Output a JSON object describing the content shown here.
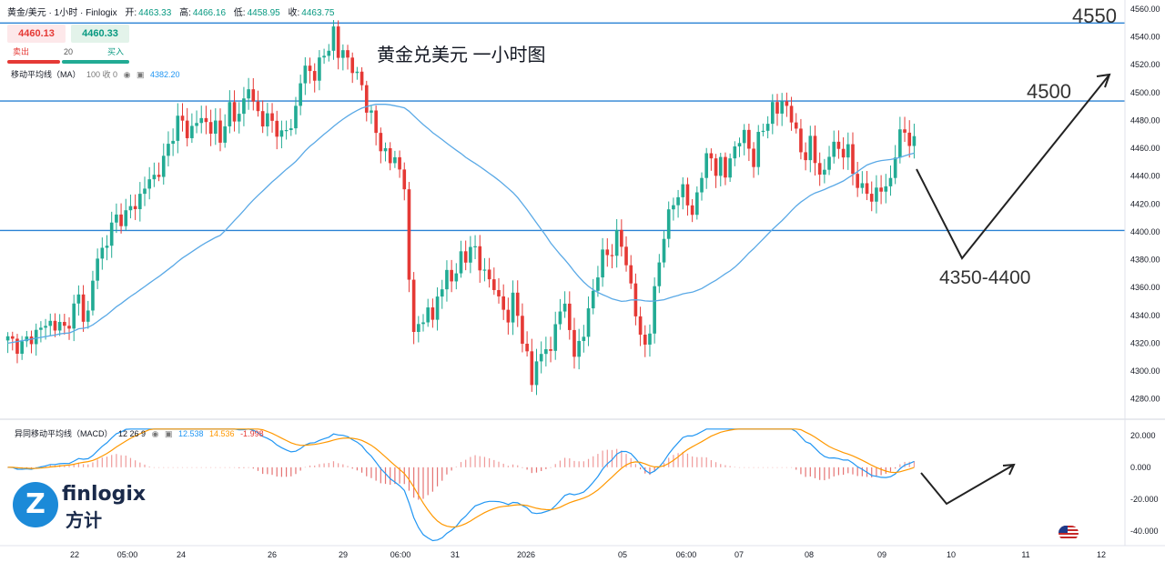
{
  "header": {
    "symbol": "黄金/美元 · 1小时 · Finlogix",
    "open_label": "开:",
    "open": "4463.33",
    "high_label": "高:",
    "high": "4466.16",
    "low_label": "低:",
    "low": "4458.95",
    "close_label": "收:",
    "close": "4463.75"
  },
  "trade": {
    "sell_price": "4460.13",
    "buy_price": "4460.33",
    "sell_label": "卖出",
    "buy_label": "买入",
    "quantity": "20"
  },
  "indicators": {
    "ma_label": "移动平均线（MA）",
    "ma_settings": "100 收 0",
    "ma_value": "4382.20",
    "macd_label": "异同移动平均线（MACD）",
    "macd_settings": "12 26 9",
    "macd_value": "12.538",
    "signal_value": "14.536",
    "hist_value": "-1.998"
  },
  "annotations": {
    "title": "黄金兑美元 一小时图",
    "level_4550": "4550",
    "level_4500": "4500",
    "level_zone": "4350-4400"
  },
  "logo": {
    "mark": "Z",
    "text": "finlogix",
    "chinese": "方计"
  },
  "colors": {
    "up": "#22ab94",
    "down": "#e53935",
    "ma": "#5aa9e6",
    "macd": "#2196f3",
    "signal": "#ff9800",
    "hline": "#2a82d4"
  },
  "chart_data": [
    {
      "type": "candlestick",
      "title": "",
      "y_ticks": [
        "4560.00",
        "4540.00",
        "4520.00",
        "4500.00",
        "4480.00",
        "4460.00",
        "4440.00",
        "4420.00",
        "4400.00",
        "4380.00",
        "4360.00",
        "4340.00",
        "4320.00",
        "4300.00",
        "4280.00"
      ],
      "x_ticks": [
        "22",
        "05:00",
        "24",
        "26",
        "29",
        "06:00",
        "31",
        "2026",
        "05",
        "06:00",
        "07",
        "08",
        "09",
        "10",
        "11",
        "12"
      ],
      "ylim": [
        4270,
        4560
      ],
      "horizontal_levels": [
        4550,
        4494,
        4401
      ],
      "price_path": [
        [
          0,
          4322
        ],
        [
          3,
          4318
        ],
        [
          6,
          4328
        ],
        [
          9,
          4335
        ],
        [
          12,
          4330
        ],
        [
          14,
          4345
        ],
        [
          15,
          4352
        ],
        [
          16,
          4340
        ],
        [
          17,
          4342
        ],
        [
          18,
          4365
        ],
        [
          19,
          4380
        ],
        [
          21,
          4395
        ],
        [
          23,
          4410
        ],
        [
          25,
          4412
        ],
        [
          27,
          4420
        ],
        [
          29,
          4432
        ],
        [
          31,
          4440
        ],
        [
          33,
          4450
        ],
        [
          35,
          4472
        ],
        [
          36,
          4480
        ],
        [
          37,
          4478
        ],
        [
          38,
          4470
        ],
        [
          40,
          4480
        ],
        [
          42,
          4478
        ],
        [
          44,
          4475
        ],
        [
          45,
          4462
        ],
        [
          46,
          4482
        ],
        [
          47,
          4490
        ],
        [
          48,
          4478
        ],
        [
          50,
          4495
        ],
        [
          51,
          4505
        ],
        [
          52,
          4490
        ],
        [
          54,
          4482
        ],
        [
          56,
          4478
        ],
        [
          58,
          4470
        ],
        [
          60,
          4475
        ],
        [
          61,
          4490
        ],
        [
          62,
          4510
        ],
        [
          63,
          4515
        ],
        [
          65,
          4515
        ],
        [
          67,
          4525
        ],
        [
          68,
          4535
        ],
        [
          69,
          4545
        ],
        [
          70,
          4525
        ],
        [
          71,
          4530
        ],
        [
          72,
          4525
        ],
        [
          73,
          4518
        ],
        [
          74,
          4510
        ],
        [
          75,
          4505
        ],
        [
          76,
          4492
        ],
        [
          77,
          4482
        ],
        [
          78,
          4470
        ],
        [
          79,
          4462
        ],
        [
          80,
          4458
        ],
        [
          81,
          4450
        ],
        [
          82,
          4452
        ],
        [
          83,
          4445
        ],
        [
          84,
          4435
        ],
        [
          85,
          4360
        ],
        [
          86,
          4328
        ],
        [
          87,
          4340
        ],
        [
          88,
          4330
        ],
        [
          89,
          4345
        ],
        [
          90,
          4340
        ],
        [
          91,
          4352
        ],
        [
          92,
          4360
        ],
        [
          93,
          4370
        ],
        [
          94,
          4365
        ],
        [
          95,
          4375
        ],
        [
          96,
          4380
        ],
        [
          97,
          4378
        ],
        [
          98,
          4395
        ],
        [
          99,
          4385
        ],
        [
          100,
          4372
        ],
        [
          101,
          4375
        ],
        [
          102,
          4365
        ],
        [
          103,
          4360
        ],
        [
          104,
          4350
        ],
        [
          105,
          4345
        ],
        [
          106,
          4340
        ],
        [
          107,
          4350
        ],
        [
          108,
          4340
        ],
        [
          109,
          4325
        ],
        [
          110,
          4310
        ],
        [
          111,
          4290
        ],
        [
          112,
          4308
        ],
        [
          113,
          4312
        ],
        [
          114,
          4318
        ],
        [
          115,
          4310
        ],
        [
          116,
          4335
        ],
        [
          117,
          4348
        ],
        [
          118,
          4342
        ],
        [
          119,
          4330
        ],
        [
          120,
          4315
        ],
        [
          121,
          4318
        ],
        [
          122,
          4325
        ],
        [
          123,
          4345
        ],
        [
          124,
          4358
        ],
        [
          125,
          4370
        ],
        [
          126,
          4382
        ],
        [
          127,
          4385
        ],
        [
          128,
          4388
        ],
        [
          129,
          4395
        ],
        [
          130,
          4390
        ],
        [
          131,
          4380
        ],
        [
          132,
          4360
        ],
        [
          133,
          4340
        ],
        [
          134,
          4325
        ],
        [
          135,
          4320
        ],
        [
          136,
          4330
        ],
        [
          137,
          4355
        ],
        [
          138,
          4380
        ],
        [
          139,
          4400
        ],
        [
          140,
          4410
        ],
        [
          141,
          4420
        ],
        [
          142,
          4428
        ],
        [
          143,
          4432
        ],
        [
          144,
          4420
        ],
        [
          145,
          4410
        ],
        [
          146,
          4430
        ],
        [
          147,
          4442
        ],
        [
          148,
          4450
        ],
        [
          149,
          4455
        ],
        [
          150,
          4445
        ],
        [
          151,
          4448
        ],
        [
          152,
          4440
        ],
        [
          153,
          4455
        ],
        [
          154,
          4460
        ],
        [
          155,
          4465
        ],
        [
          156,
          4470
        ],
        [
          157,
          4462
        ],
        [
          158,
          4450
        ],
        [
          159,
          4465
        ],
        [
          160,
          4475
        ],
        [
          161,
          4482
        ],
        [
          162,
          4488
        ],
        [
          163,
          4486
        ],
        [
          164,
          4495
        ],
        [
          165,
          4490
        ],
        [
          166,
          4480
        ],
        [
          167,
          4470
        ],
        [
          168,
          4460
        ],
        [
          169,
          4455
        ],
        [
          170,
          4462
        ],
        [
          171,
          4452
        ],
        [
          172,
          4445
        ],
        [
          173,
          4440
        ],
        [
          174,
          4455
        ],
        [
          175,
          4465
        ],
        [
          176,
          4460
        ],
        [
          177,
          4455
        ],
        [
          178,
          4458
        ],
        [
          179,
          4445
        ],
        [
          180,
          4435
        ],
        [
          181,
          4428
        ],
        [
          182,
          4430
        ],
        [
          183,
          4425
        ],
        [
          184,
          4428
        ],
        [
          185,
          4430
        ],
        [
          186,
          4432
        ],
        [
          187,
          4440
        ],
        [
          188,
          4455
        ],
        [
          189,
          4468
        ],
        [
          190,
          4475
        ],
        [
          191,
          4465
        ],
        [
          192,
          4462
        ]
      ]
    },
    {
      "type": "line",
      "title": "",
      "y_ticks": [
        "20.000",
        "0.000",
        "-20.000",
        "-40.000"
      ],
      "ylim": [
        -48,
        25
      ]
    }
  ]
}
